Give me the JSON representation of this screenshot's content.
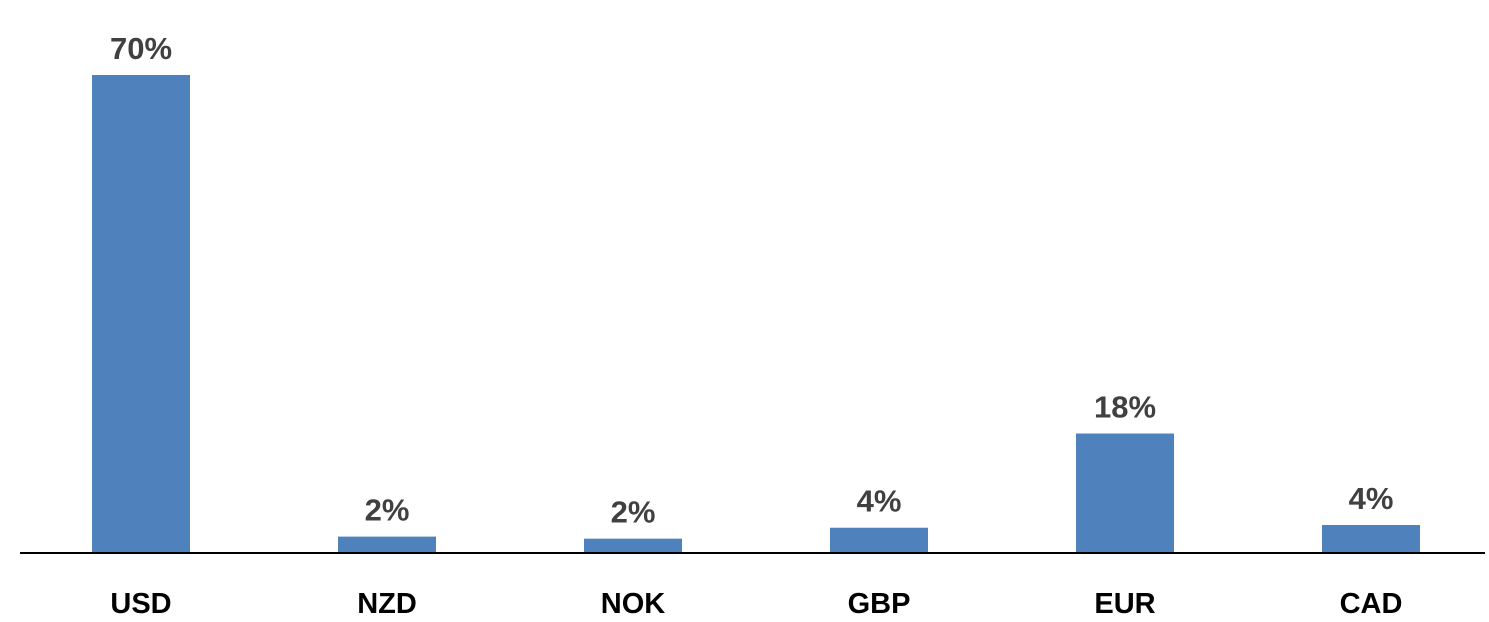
{
  "chart_data": {
    "type": "bar",
    "categories": [
      "USD",
      "NZD",
      "NOK",
      "GBP",
      "EUR",
      "CAD"
    ],
    "values": [
      70,
      2.4,
      2.1,
      3.7,
      17.5,
      4.1
    ],
    "data_labels": [
      "70%",
      "2%",
      "2%",
      "4%",
      "18%",
      "4%"
    ],
    "title": "",
    "xlabel": "",
    "ylabel": "",
    "ylim": [
      0,
      70
    ],
    "grid": false,
    "legend": "none",
    "colors": {
      "bar": "#4f81bd",
      "axis": "#000000",
      "data_label": "#404040",
      "category_label": "#000000"
    }
  }
}
